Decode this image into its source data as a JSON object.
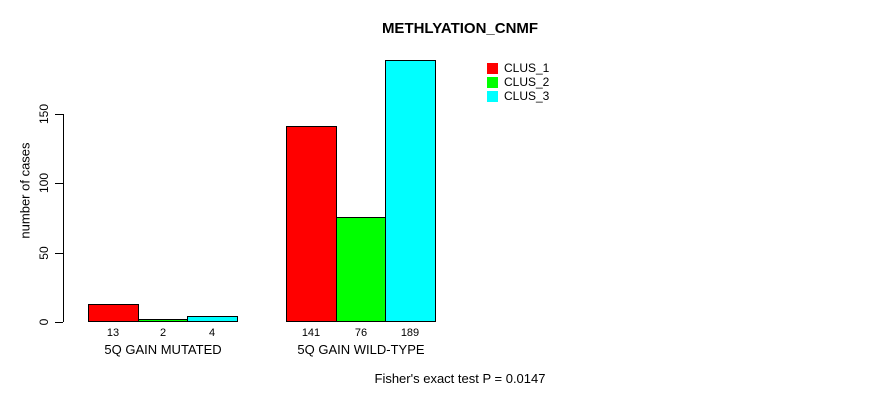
{
  "chart_data": {
    "type": "bar",
    "title": "METHLYATION_CNMF",
    "ylabel": "number of cases",
    "xlabel": "",
    "categories": [
      "5Q GAIN MUTATED",
      "5Q GAIN WILD-TYPE"
    ],
    "series": [
      {
        "name": "CLUS_1",
        "color": "#FF0000",
        "values": [
          13,
          141
        ]
      },
      {
        "name": "CLUS_2",
        "color": "#00FF00",
        "values": [
          2,
          76
        ]
      },
      {
        "name": "CLUS_3",
        "color": "#00FFFF",
        "values": [
          4,
          189
        ]
      }
    ],
    "bar_value_labels": [
      [
        "13",
        "2",
        "4"
      ],
      [
        "141",
        "76",
        "189"
      ]
    ],
    "yticks": [
      0,
      50,
      100,
      150
    ],
    "ylim": [
      0,
      189
    ],
    "grid": false,
    "legend_position": "top-right",
    "bar_border_color": "#000000",
    "annotation": "Fisher's exact test P = 0.0147"
  }
}
